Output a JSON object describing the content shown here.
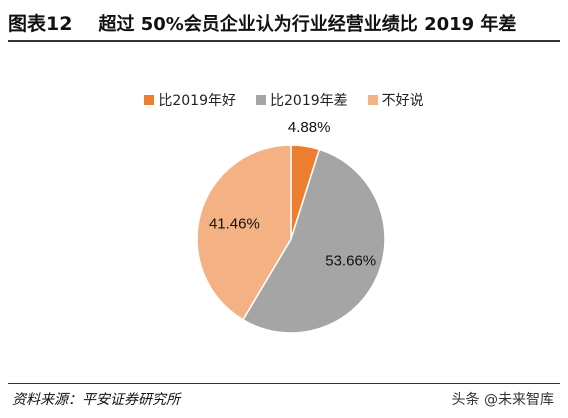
{
  "figure": {
    "label": "图表12",
    "title": "超过 50%会员企业认为行业经营业绩比 2019 年差"
  },
  "chart_data": {
    "type": "pie",
    "title": "",
    "legend_position": "top",
    "slices": [
      {
        "name": "比2019年好",
        "value": 4.88,
        "label": "4.88%",
        "color": "#ED7D31"
      },
      {
        "name": "比2019年差",
        "value": 53.66,
        "label": "53.66%",
        "color": "#A5A5A5"
      },
      {
        "name": "不好说",
        "value": 41.46,
        "label": "41.46%",
        "color": "#F4B183"
      }
    ]
  },
  "source": {
    "text": "资料来源：平安证券研究所"
  },
  "watermark": {
    "text": "头条 @未来智库"
  }
}
